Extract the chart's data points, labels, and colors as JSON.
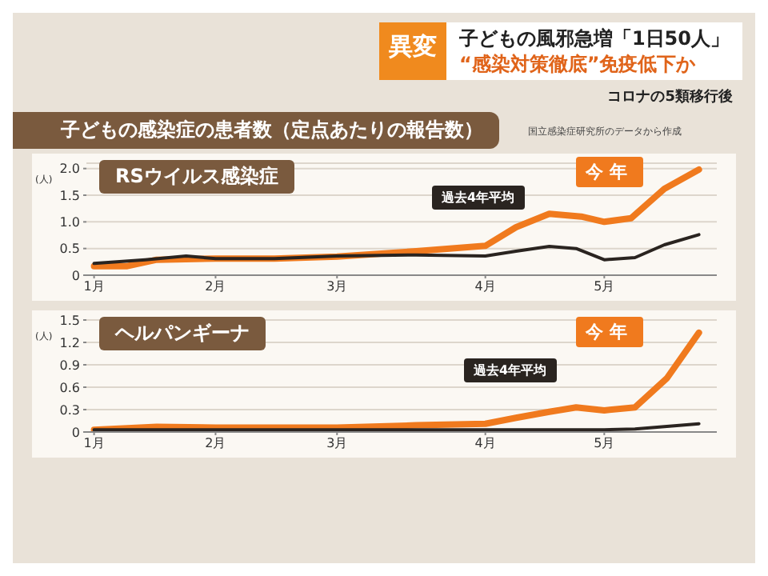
{
  "chart_data": [
    {
      "type": "line",
      "title": "RSウイルス感染症",
      "ylabel": "(人)",
      "annotations": [
        "異変",
        "子どもの風邪急増「1日50人」",
        "“感染対策徹底”免疫低下か",
        "コロナの5類移行後",
        "子どもの感染症の患者数（定点あたりの報告数）",
        "国立感染症研究所のデータから作成"
      ],
      "xlim": [
        0.94,
        5.87
      ],
      "xticks": [
        {
          "value": 1,
          "label": "1月"
        },
        {
          "value": 1.95,
          "label": "2月"
        },
        {
          "value": 2.9,
          "label": "3月"
        },
        {
          "value": 4.06,
          "label": "4月"
        },
        {
          "value": 4.99,
          "label": "5月"
        }
      ],
      "ylim": [
        0,
        2.1
      ],
      "yticks": [
        0,
        0.5,
        {
          "value": 1,
          "label": "1.0"
        },
        1.5,
        {
          "value": 2,
          "label": "2.0"
        }
      ],
      "grid": "y",
      "marker": "none",
      "legend": false,
      "series": [
        {
          "name": "過去4年平均",
          "color": "#2a2420",
          "x": [
            1.0,
            1.4,
            1.72,
            1.95,
            2.41,
            2.9,
            3.52,
            4.06,
            4.3,
            4.56,
            4.77,
            4.99,
            5.23,
            5.46,
            5.73
          ],
          "values": [
            0.22,
            0.29,
            0.36,
            0.31,
            0.31,
            0.36,
            0.38,
            0.36,
            0.45,
            0.54,
            0.5,
            0.29,
            0.33,
            0.57,
            0.76
          ]
        },
        {
          "name": "今年",
          "color": "#f07a1e",
          "x": [
            1.0,
            1.26,
            1.49,
            1.95,
            2.41,
            2.9,
            3.52,
            4.06,
            4.3,
            4.56,
            4.81,
            4.99,
            5.2,
            5.46,
            5.73
          ],
          "values": [
            0.17,
            0.17,
            0.29,
            0.31,
            0.31,
            0.35,
            0.45,
            0.55,
            0.9,
            1.15,
            1.1,
            1.0,
            1.07,
            1.62,
            1.98
          ]
        }
      ]
    },
    {
      "type": "line",
      "title": "ヘルパンギーナ",
      "ylabel": "(人)",
      "xlim": [
        0.94,
        5.87
      ],
      "xticks": [
        {
          "value": 1,
          "label": "1月"
        },
        {
          "value": 1.95,
          "label": "2月"
        },
        {
          "value": 2.9,
          "label": "3月"
        },
        {
          "value": 4.06,
          "label": "4月"
        },
        {
          "value": 4.99,
          "label": "5月"
        }
      ],
      "ylim": [
        0,
        1.5
      ],
      "yticks": [
        0,
        0.3,
        0.6,
        0.9,
        1.2,
        1.5
      ],
      "grid": "y",
      "marker": "none",
      "legend": false,
      "series": [
        {
          "name": "過去4年平均",
          "color": "#2a2420",
          "x": [
            1.0,
            1.95,
            2.9,
            4.06,
            4.99,
            5.23,
            5.73
          ],
          "values": [
            0.03,
            0.03,
            0.03,
            0.03,
            0.03,
            0.04,
            0.11
          ]
        },
        {
          "name": "今年",
          "color": "#f07a1e",
          "x": [
            1.0,
            1.49,
            1.95,
            2.9,
            3.52,
            4.06,
            4.3,
            4.56,
            4.77,
            4.99,
            5.23,
            5.48,
            5.73
          ],
          "values": [
            0.03,
            0.07,
            0.06,
            0.06,
            0.09,
            0.11,
            0.19,
            0.27,
            0.33,
            0.29,
            0.33,
            0.72,
            1.33
          ]
        }
      ]
    }
  ]
}
